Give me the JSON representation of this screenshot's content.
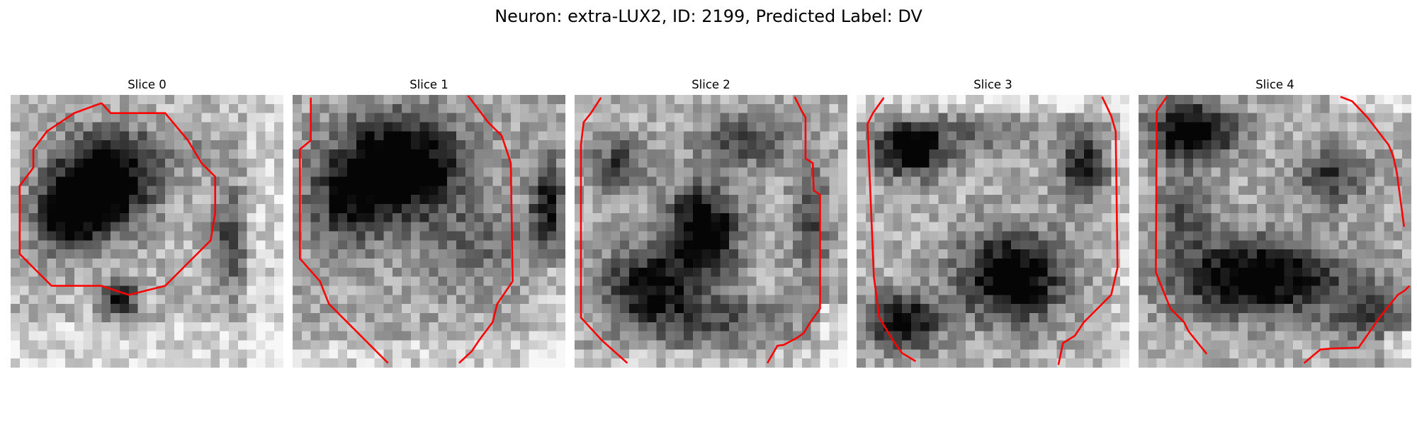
{
  "figure": {
    "title": "Neuron: extra-LUX2, ID: 2199, Predicted Label: DV"
  },
  "colors": {
    "background": "#ffffff",
    "contour": "#ff0000",
    "colormap": "grayscale"
  },
  "slices": [
    {
      "label": "Slice 0",
      "contour": "closed-ring"
    },
    {
      "label": "Slice 1",
      "contour": "open-sides"
    },
    {
      "label": "Slice 2",
      "contour": "open-sides"
    },
    {
      "label": "Slice 3",
      "contour": "open-sides"
    },
    {
      "label": "Slice 4",
      "contour": "open-sides"
    }
  ]
}
